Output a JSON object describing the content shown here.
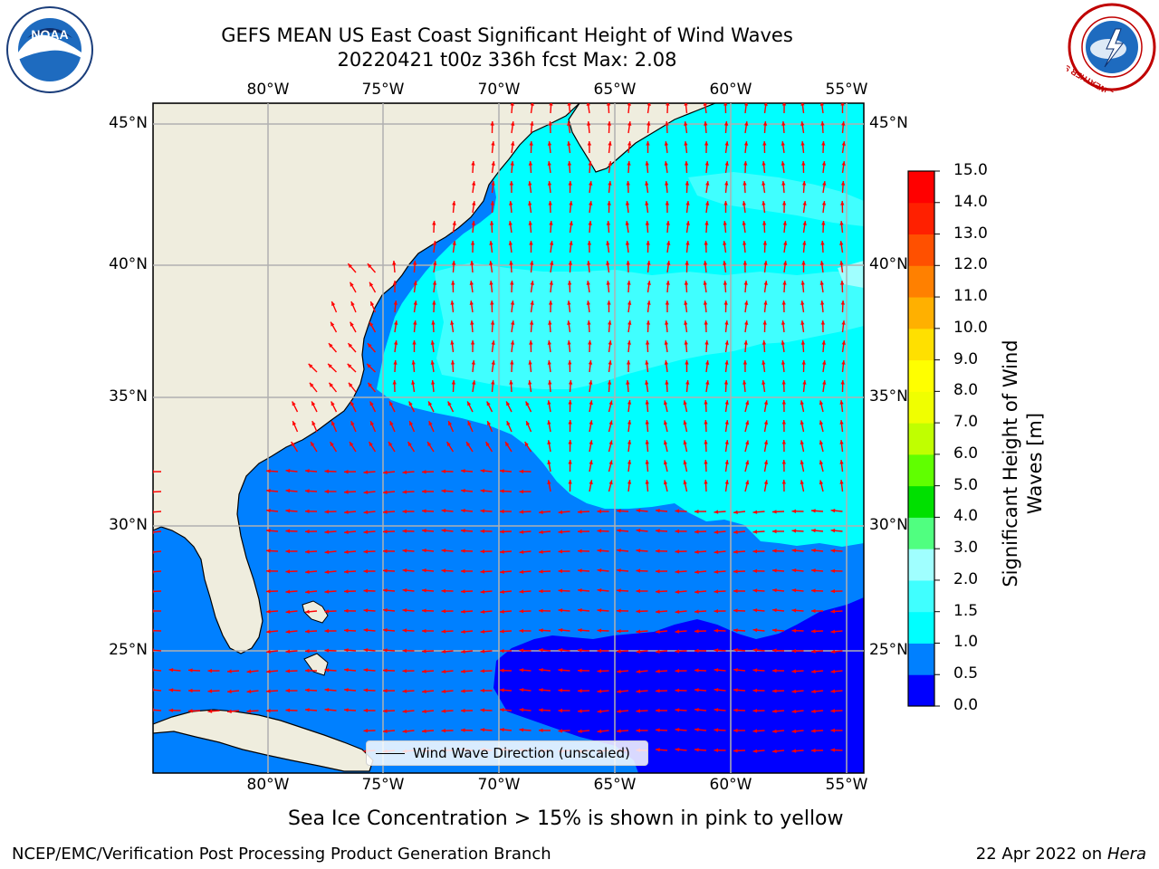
{
  "header": {
    "title_line1": "GEFS MEAN US East Coast Significant Height of Wind Waves",
    "title_line2": "20220421 t00z 336h fcst   Max: 2.08"
  },
  "map": {
    "lon_ticks": [
      "80°W",
      "75°W",
      "70°W",
      "65°W",
      "60°W",
      "55°W"
    ],
    "lat_ticks": [
      "45°N",
      "40°N",
      "35°N",
      "30°N",
      "25°N"
    ],
    "legend_label": "Wind Wave Direction (unscaled)",
    "arrow_color": "#ff0000",
    "land_color": "#efedde",
    "grid_color": "#b0b0b0"
  },
  "colorbar": {
    "title": "Significant Height of Wind Waves [m]",
    "ticks": [
      "15.0",
      "14.0",
      "13.0",
      "12.0",
      "11.0",
      "10.0",
      "9.0",
      "8.0",
      "7.0",
      "6.0",
      "5.0",
      "4.0",
      "3.0",
      "2.0",
      "1.5",
      "1.0",
      "0.5",
      "0.0"
    ],
    "colors_bottom_to_top": [
      "#0000ff",
      "#0080ff",
      "#00ffff",
      "#40ffff",
      "#a0ffff",
      "#50ff80",
      "#00e000",
      "#60ff00",
      "#c0ff00",
      "#f0ff00",
      "#ffff00",
      "#ffe000",
      "#ffb000",
      "#ff8000",
      "#ff5000",
      "#ff2000",
      "#ff0000"
    ]
  },
  "logos": {
    "left": {
      "text": "NOAA",
      "icon": "noaa-logo"
    },
    "right": {
      "text": "NATIONAL WEATHER SERVICE",
      "icon": "nws-logo"
    }
  },
  "notes": {
    "sea_ice": "Sea Ice Concentration > 15% is shown in pink to yellow"
  },
  "footer": {
    "left": "NCEP/EMC/Verification Post Processing Product Generation Branch",
    "date": "22 Apr 2022 on ",
    "machine": "Hera"
  }
}
